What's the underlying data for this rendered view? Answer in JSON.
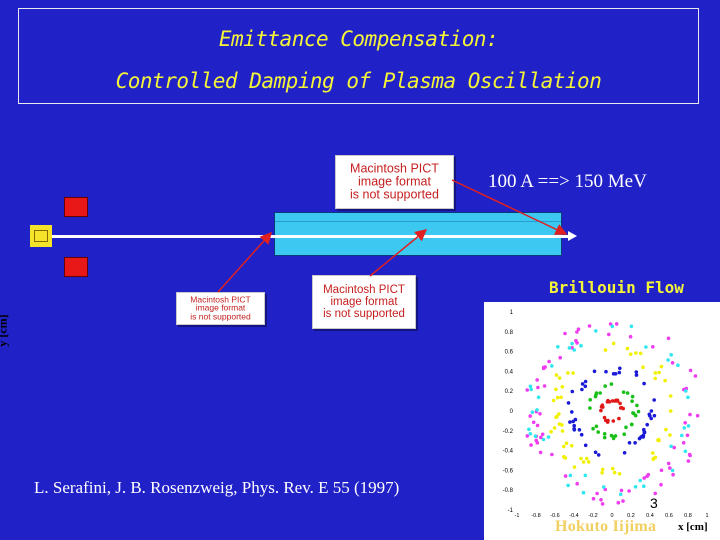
{
  "title": {
    "line1": "Emittance Compensation:",
    "line2": "Controlled Damping of Plasma Oscillation"
  },
  "placeholders": [
    {
      "lines": [
        "Macintosh PICT",
        "image format",
        "is not supported"
      ]
    },
    {
      "lines": [
        "Macintosh PICT",
        "image format",
        "is not supported"
      ]
    },
    {
      "lines": [
        "Macintosh PICT",
        "image format",
        "is not supported"
      ]
    }
  ],
  "beam_label": "100 A ==> 150 MeV",
  "brillouin_label": "Brillouin Flow",
  "reference": "L. Serafini, J. B. Rosenzweig, Phys. Rev. E 55 (1997)",
  "plot": {
    "y_axis_label": "y [cm]",
    "x_axis_label": "x [cm]",
    "y_ticks": [
      "1",
      "0.8",
      "0.6",
      "0.4",
      "0.2",
      "0",
      "-0.2",
      "-0.4",
      "-0.6",
      "-0.8",
      "-1"
    ],
    "x_ticks": [
      "-1",
      "-0.8",
      "-0.6",
      "-0.4",
      "-0.2",
      "0",
      "0.2",
      "0.4",
      "0.6",
      "0.8",
      "1"
    ],
    "rings": [
      {
        "color": "#f03cf0",
        "radius": 0.85,
        "count": 70
      },
      {
        "color": "#30e6f0",
        "radius": 0.8,
        "count": 40
      },
      {
        "color": "#f0f000",
        "radius": 0.62,
        "count": 55
      },
      {
        "color": "#1a1ad8",
        "radius": 0.42,
        "count": 45
      },
      {
        "color": "#18c018",
        "radius": 0.25,
        "count": 30
      },
      {
        "color": "#e01818",
        "radius": 0.11,
        "count": 22
      }
    ]
  },
  "author": "Hokuto Iijima",
  "slide_number": "3",
  "colors": {
    "background": "#2121c8",
    "title_text": "#f5f538",
    "accelerator": "#3cc8f0",
    "magnet": "#e81818",
    "gun": "#f5e32a",
    "arrow": "#e02020"
  }
}
